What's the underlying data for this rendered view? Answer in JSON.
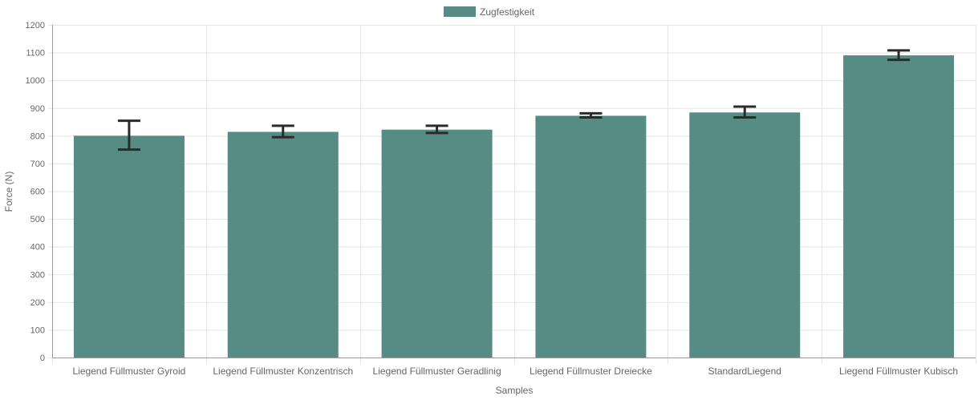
{
  "chart_data": {
    "type": "bar",
    "title": "",
    "xlabel": "Samples",
    "ylabel": "Force (N)",
    "ylim": [
      0,
      1200
    ],
    "ytick_step": 100,
    "yticks": [
      "0",
      "100",
      "200",
      "300",
      "400",
      "500",
      "600",
      "700",
      "800",
      "900",
      "1000",
      "1100",
      "1200"
    ],
    "grid": true,
    "legend_position": "top-center",
    "categories": [
      "Liegend Füllmuster Gyroid",
      "Liegend Füllmuster Konzentrisch",
      "Liegend Füllmuster Geradlinig",
      "Liegend Füllmuster Dreiecke",
      "StandardLiegend",
      "Liegend Füllmuster Kubisch"
    ],
    "series": [
      {
        "name": "Zugfestigkeit",
        "color": "#568c84",
        "values": [
          800,
          814,
          822,
          872,
          884,
          1090
        ],
        "error_low": [
          750,
          795,
          810,
          866,
          866,
          1074
        ],
        "error_high": [
          854,
          836,
          836,
          881,
          905,
          1108
        ]
      }
    ],
    "colors": {
      "bar": "#568c84",
      "error_bar": "#2b2b2b",
      "grid": "#e5e5e5",
      "axis": "#999999",
      "text": "#666666"
    }
  }
}
